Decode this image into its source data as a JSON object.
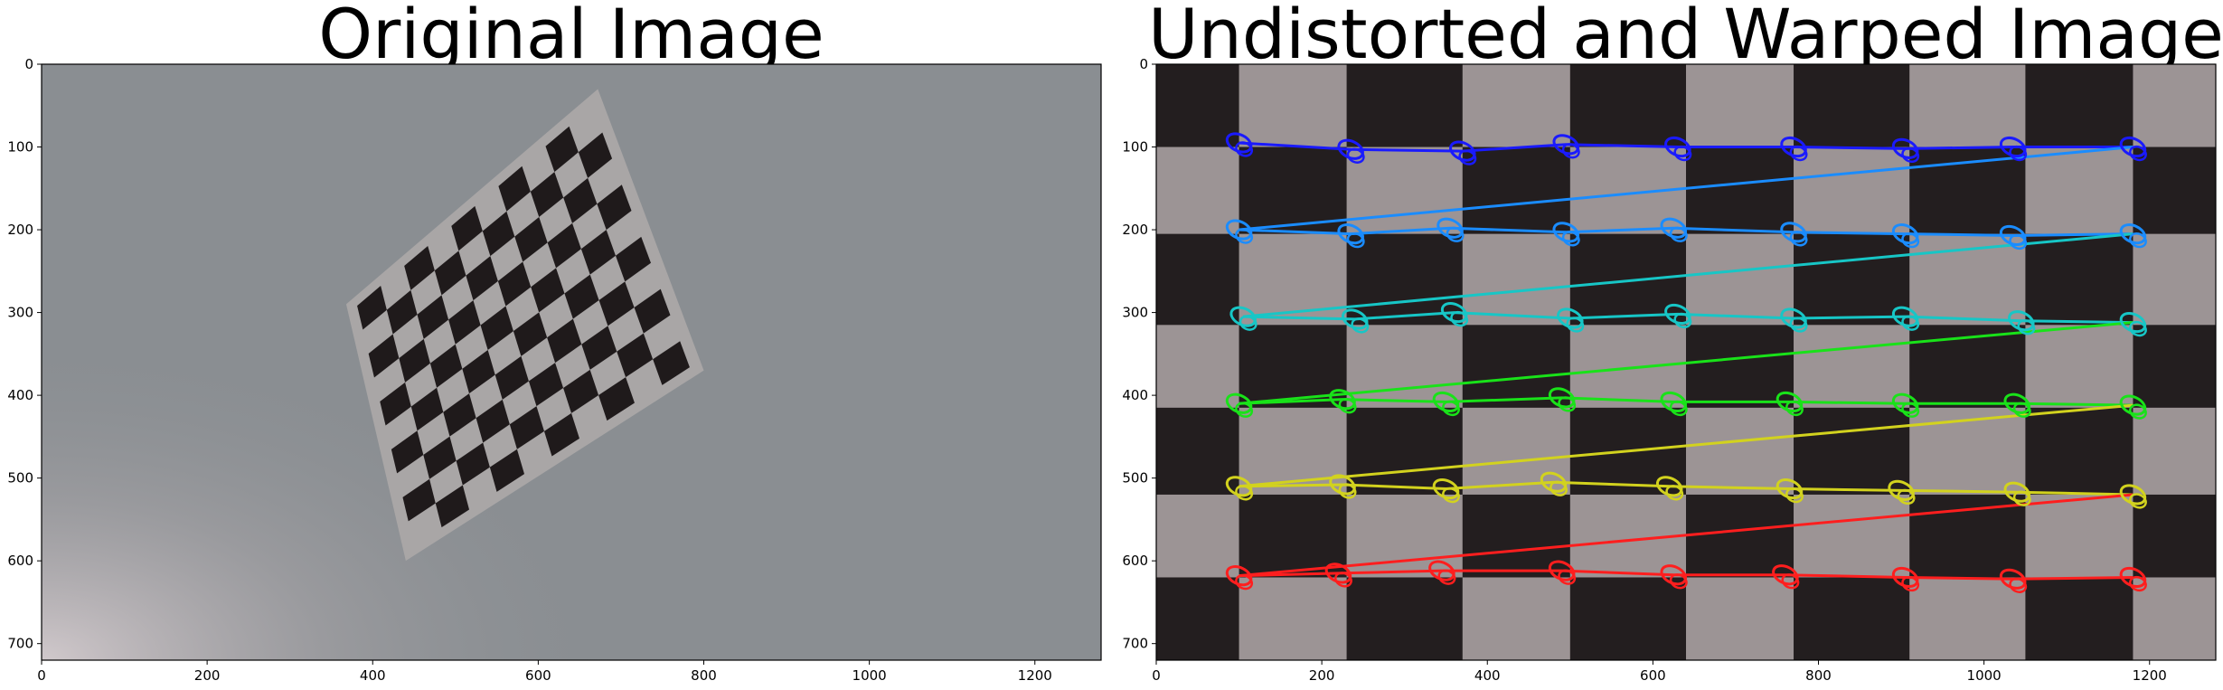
{
  "chart_data": [
    {
      "type": "image",
      "title": "Original Image",
      "xlim": [
        0,
        1280
      ],
      "ylim": [
        720,
        0
      ],
      "xticks": [
        0,
        200,
        400,
        600,
        800,
        1000,
        1200
      ],
      "yticks": [
        0,
        100,
        200,
        300,
        400,
        500,
        600,
        700
      ],
      "content": "photo of a tilted checkerboard on a grey floor",
      "board_corners": [
        [
          368,
          290
        ],
        [
          672,
          30
        ],
        [
          800,
          370
        ],
        [
          440,
          600
        ]
      ],
      "board_squares": [
        10,
        10
      ],
      "colors": {
        "floor": "#8a8e92",
        "paper": "#a9a6a6",
        "square": "#1f1a1b"
      }
    },
    {
      "type": "image",
      "title": "Undistorted and Warped Image",
      "xlim": [
        0,
        1280
      ],
      "ylim": [
        720,
        0
      ],
      "xticks": [
        0,
        200,
        400,
        600,
        800,
        1000,
        1200
      ],
      "yticks": [
        0,
        100,
        200,
        300,
        400,
        500,
        600,
        700
      ],
      "content": "warped checkerboard with detected corners",
      "column_edges": [
        0,
        100,
        230,
        370,
        500,
        640,
        770,
        910,
        1050,
        1180,
        1280
      ],
      "row_edges": [
        0,
        100,
        205,
        315,
        415,
        520,
        620,
        720
      ],
      "colors": {
        "light": "#9c9495",
        "dark": "#231e1f"
      },
      "corner_series": [
        {
          "name": "row1",
          "color": "#1a1aff",
          "points": [
            [
              100,
              95
            ],
            [
              235,
              103
            ],
            [
              370,
              105
            ],
            [
              495,
              97
            ],
            [
              630,
              100
            ],
            [
              770,
              100
            ],
            [
              905,
              102
            ],
            [
              1035,
              100
            ],
            [
              1180,
              100
            ]
          ]
        },
        {
          "name": "row2",
          "color": "#1a8cff",
          "points": [
            [
              100,
              200
            ],
            [
              235,
              205
            ],
            [
              355,
              198
            ],
            [
              495,
              203
            ],
            [
              625,
              198
            ],
            [
              770,
              203
            ],
            [
              905,
              205
            ],
            [
              1035,
              207
            ],
            [
              1180,
              205
            ]
          ]
        },
        {
          "name": "row3",
          "color": "#17c6c6",
          "points": [
            [
              105,
              305
            ],
            [
              240,
              308
            ],
            [
              360,
              300
            ],
            [
              500,
              307
            ],
            [
              630,
              302
            ],
            [
              770,
              307
            ],
            [
              905,
              305
            ],
            [
              1045,
              310
            ],
            [
              1180,
              312
            ]
          ]
        },
        {
          "name": "row4",
          "color": "#19e219",
          "points": [
            [
              100,
              410
            ],
            [
              225,
              405
            ],
            [
              350,
              408
            ],
            [
              490,
              403
            ],
            [
              625,
              408
            ],
            [
              765,
              408
            ],
            [
              905,
              410
            ],
            [
              1040,
              410
            ],
            [
              1180,
              412
            ]
          ]
        },
        {
          "name": "row5",
          "color": "#d2d21e",
          "points": [
            [
              100,
              510
            ],
            [
              225,
              508
            ],
            [
              350,
              513
            ],
            [
              480,
              505
            ],
            [
              620,
              510
            ],
            [
              765,
              513
            ],
            [
              900,
              515
            ],
            [
              1040,
              517
            ],
            [
              1180,
              520
            ]
          ]
        },
        {
          "name": "row6",
          "color": "#ff1e1e",
          "points": [
            [
              100,
              618
            ],
            [
              220,
              615
            ],
            [
              345,
              612
            ],
            [
              490,
              612
            ],
            [
              625,
              617
            ],
            [
              760,
              617
            ],
            [
              905,
              620
            ],
            [
              1035,
              622
            ],
            [
              1180,
              620
            ]
          ]
        }
      ]
    }
  ]
}
